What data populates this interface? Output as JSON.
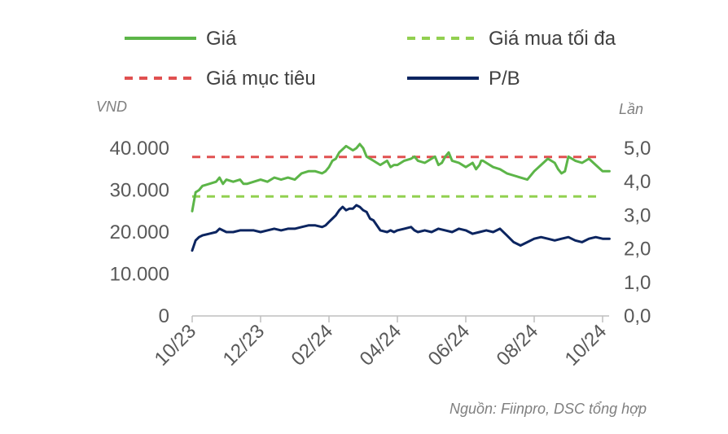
{
  "chart_data": {
    "type": "line",
    "legend": {
      "placement": "top",
      "entries": [
        {
          "key": "gia",
          "label": "Giá",
          "color": "#5cb548",
          "style": "solid"
        },
        {
          "key": "gia_mua_toi_da",
          "label": "Giá mua tối đa",
          "color": "#92d050",
          "style": "dashed"
        },
        {
          "key": "gia_muc_tieu",
          "label": "Giá mục tiêu",
          "color": "#e05050",
          "style": "dashed"
        },
        {
          "key": "pb",
          "label": "P/B",
          "color": "#0c2560",
          "style": "solid"
        }
      ]
    },
    "y_left": {
      "unit_label": "VND",
      "range": [
        0,
        40000
      ],
      "ticks": [
        0,
        10000,
        20000,
        30000,
        40000
      ],
      "tick_labels": [
        "0",
        "10.000",
        "20.000",
        "30.000",
        "40.000"
      ]
    },
    "y_right": {
      "unit_label": "Lần",
      "range": [
        0,
        5
      ],
      "ticks": [
        0,
        1,
        2,
        3,
        4,
        5
      ],
      "tick_labels": [
        "0,0",
        "1,0",
        "2,0",
        "3,0",
        "4,0",
        "5,0"
      ]
    },
    "x": {
      "range": [
        0,
        12
      ],
      "ticks": [
        0,
        2,
        4,
        6,
        8,
        10,
        12
      ],
      "tick_labels": [
        "10/23",
        "12/23",
        "02/24",
        "04/24",
        "06/24",
        "08/24",
        "10/24"
      ]
    },
    "grid": false,
    "series": [
      {
        "name": "Giá",
        "axis": "left",
        "color": "#5cb548",
        "x": [
          0.0,
          0.1,
          0.2,
          0.3,
          0.5,
          0.7,
          0.8,
          0.9,
          1.0,
          1.2,
          1.4,
          1.5,
          1.6,
          1.8,
          2.0,
          2.2,
          2.4,
          2.6,
          2.8,
          3.0,
          3.2,
          3.4,
          3.6,
          3.8,
          3.9,
          4.0,
          4.1,
          4.2,
          4.3,
          4.5,
          4.7,
          4.8,
          4.9,
          5.0,
          5.1,
          5.3,
          5.5,
          5.7,
          5.8,
          5.9,
          6.0,
          6.2,
          6.4,
          6.5,
          6.6,
          6.8,
          7.0,
          7.1,
          7.2,
          7.3,
          7.4,
          7.5,
          7.6,
          7.8,
          8.0,
          8.1,
          8.2,
          8.3,
          8.4,
          8.45,
          8.5,
          8.6,
          8.8,
          9.0,
          9.2,
          9.4,
          9.6,
          9.8,
          10.0,
          10.2,
          10.4,
          10.6,
          10.7,
          10.8,
          10.9,
          11.0,
          11.2,
          11.4,
          11.6,
          11.8,
          12.0,
          12.2
        ],
        "values": [
          25000,
          29500,
          30000,
          31000,
          31500,
          32000,
          33000,
          31500,
          32500,
          32000,
          32500,
          31500,
          31500,
          32000,
          32500,
          32000,
          33000,
          32500,
          33000,
          32500,
          34000,
          34500,
          34500,
          34000,
          34500,
          35500,
          37000,
          37500,
          39000,
          40500,
          39500,
          40000,
          41000,
          40000,
          38000,
          37000,
          36000,
          37000,
          35500,
          36000,
          36000,
          37000,
          37500,
          38000,
          37000,
          36500,
          37500,
          38000,
          36000,
          36500,
          38000,
          39000,
          37000,
          36500,
          35500,
          36000,
          36500,
          35000,
          36000,
          37000,
          37000,
          36500,
          35500,
          35000,
          34000,
          33500,
          33000,
          32500,
          34500,
          36000,
          37500,
          36500,
          35000,
          34000,
          34500,
          38000,
          37000,
          36500,
          37500,
          36000,
          34500,
          34500
        ]
      },
      {
        "name": "Giá mua tối đa",
        "axis": "left",
        "color": "#92d050",
        "x": [
          0,
          12
        ],
        "values": [
          28500,
          28500
        ]
      },
      {
        "name": "Giá mục tiêu",
        "axis": "left",
        "color": "#e05050",
        "x": [
          0,
          12
        ],
        "values": [
          37900,
          37900
        ]
      },
      {
        "name": "P/B",
        "axis": "right",
        "color": "#0c2560",
        "x": [
          0.0,
          0.1,
          0.2,
          0.3,
          0.5,
          0.7,
          0.8,
          1.0,
          1.2,
          1.4,
          1.6,
          1.8,
          2.0,
          2.2,
          2.4,
          2.6,
          2.8,
          3.0,
          3.2,
          3.4,
          3.6,
          3.8,
          3.9,
          4.0,
          4.1,
          4.2,
          4.3,
          4.4,
          4.5,
          4.6,
          4.7,
          4.8,
          4.9,
          5.0,
          5.1,
          5.2,
          5.3,
          5.5,
          5.7,
          5.8,
          5.9,
          6.0,
          6.2,
          6.4,
          6.5,
          6.6,
          6.8,
          7.0,
          7.2,
          7.4,
          7.6,
          7.8,
          8.0,
          8.2,
          8.4,
          8.6,
          8.8,
          9.0,
          9.2,
          9.4,
          9.6,
          9.8,
          10.0,
          10.2,
          10.4,
          10.6,
          10.8,
          11.0,
          11.2,
          11.4,
          11.6,
          11.8,
          12.0,
          12.2
        ],
        "values": [
          1.95,
          2.25,
          2.35,
          2.4,
          2.45,
          2.5,
          2.6,
          2.5,
          2.5,
          2.55,
          2.55,
          2.55,
          2.5,
          2.55,
          2.6,
          2.55,
          2.6,
          2.6,
          2.65,
          2.7,
          2.7,
          2.65,
          2.7,
          2.8,
          2.9,
          3.0,
          3.15,
          3.25,
          3.15,
          3.2,
          3.2,
          3.3,
          3.25,
          3.15,
          3.1,
          2.9,
          2.85,
          2.55,
          2.5,
          2.55,
          2.5,
          2.55,
          2.6,
          2.65,
          2.55,
          2.5,
          2.55,
          2.5,
          2.6,
          2.55,
          2.5,
          2.6,
          2.55,
          2.45,
          2.5,
          2.55,
          2.5,
          2.6,
          2.4,
          2.2,
          2.1,
          2.2,
          2.3,
          2.35,
          2.3,
          2.25,
          2.3,
          2.35,
          2.25,
          2.2,
          2.3,
          2.35,
          2.3,
          2.3
        ]
      }
    ],
    "source": "Nguồn: Fiinpro, DSC tổng hợp"
  }
}
